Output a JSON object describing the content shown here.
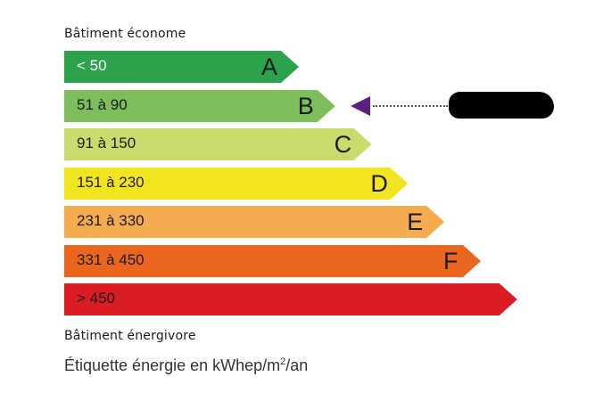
{
  "top_caption": "Bâtiment économe",
  "bottom_caption": "Bâtiment énergivore",
  "footer": {
    "prefix": "Étiquette énergie en kWhep/m",
    "sup": "2",
    "suffix": "/an"
  },
  "classes": [
    {
      "letter": "A",
      "range": "< 50",
      "color": "#2ba24b",
      "text_color": "#ffffff"
    },
    {
      "letter": "B",
      "range": "51 à 90",
      "color": "#7dbd5b",
      "text_color": "#1a1a1a"
    },
    {
      "letter": "C",
      "range": "91 à 150",
      "color": "#c8dc6b",
      "text_color": "#1a1a1a"
    },
    {
      "letter": "D",
      "range": "151 à 230",
      "color": "#f2e51f",
      "text_color": "#1a1a1a"
    },
    {
      "letter": "E",
      "range": "231 à 330",
      "color": "#f5ab4f",
      "text_color": "#1a1a1a"
    },
    {
      "letter": "F",
      "range": "331 à 450",
      "color": "#ea661f",
      "text_color": "#1a1a1a"
    },
    {
      "letter": "",
      "range": "> 450",
      "color": "#d91d22",
      "text_color": "#1a1a1a"
    }
  ],
  "indicator": {
    "class": "B",
    "color": "#5a2180",
    "label_redacted": true
  }
}
